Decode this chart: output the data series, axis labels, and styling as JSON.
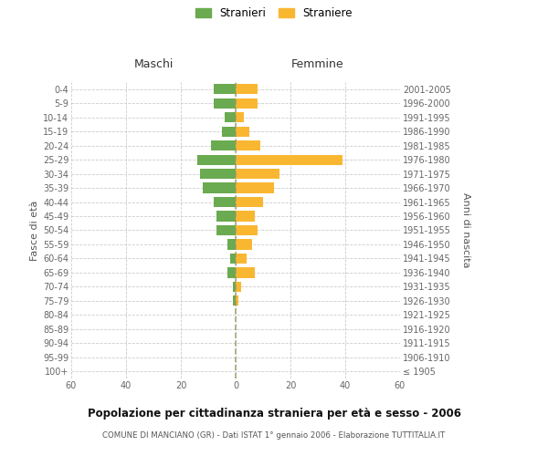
{
  "age_groups": [
    "100+",
    "95-99",
    "90-94",
    "85-89",
    "80-84",
    "75-79",
    "70-74",
    "65-69",
    "60-64",
    "55-59",
    "50-54",
    "45-49",
    "40-44",
    "35-39",
    "30-34",
    "25-29",
    "20-24",
    "15-19",
    "10-14",
    "5-9",
    "0-4"
  ],
  "birth_years": [
    "≤ 1905",
    "1906-1910",
    "1911-1915",
    "1916-1920",
    "1921-1925",
    "1926-1930",
    "1931-1935",
    "1936-1940",
    "1941-1945",
    "1946-1950",
    "1951-1955",
    "1956-1960",
    "1961-1965",
    "1966-1970",
    "1971-1975",
    "1976-1980",
    "1981-1985",
    "1986-1990",
    "1991-1995",
    "1996-2000",
    "2001-2005"
  ],
  "maschi": [
    0,
    0,
    0,
    0,
    0,
    1,
    1,
    3,
    2,
    3,
    7,
    7,
    8,
    12,
    13,
    14,
    9,
    5,
    4,
    8,
    8
  ],
  "femmine": [
    0,
    0,
    0,
    0,
    0,
    1,
    2,
    7,
    4,
    6,
    8,
    7,
    10,
    14,
    16,
    39,
    9,
    5,
    3,
    8,
    8
  ],
  "maschi_color": "#6aaa50",
  "femmine_color": "#f9b731",
  "background_color": "#ffffff",
  "grid_color": "#cccccc",
  "title": "Popolazione per cittadinanza straniera per età e sesso - 2006",
  "subtitle": "COMUNE DI MANCIANO (GR) - Dati ISTAT 1° gennaio 2006 - Elaborazione TUTTITALIA.IT",
  "ylabel_left": "Fasce di età",
  "ylabel_right": "Anni di nascita",
  "label_maschi": "Maschi",
  "label_femmine": "Femmine",
  "legend_stranieri": "Stranieri",
  "legend_straniere": "Straniere",
  "xlim": 60
}
